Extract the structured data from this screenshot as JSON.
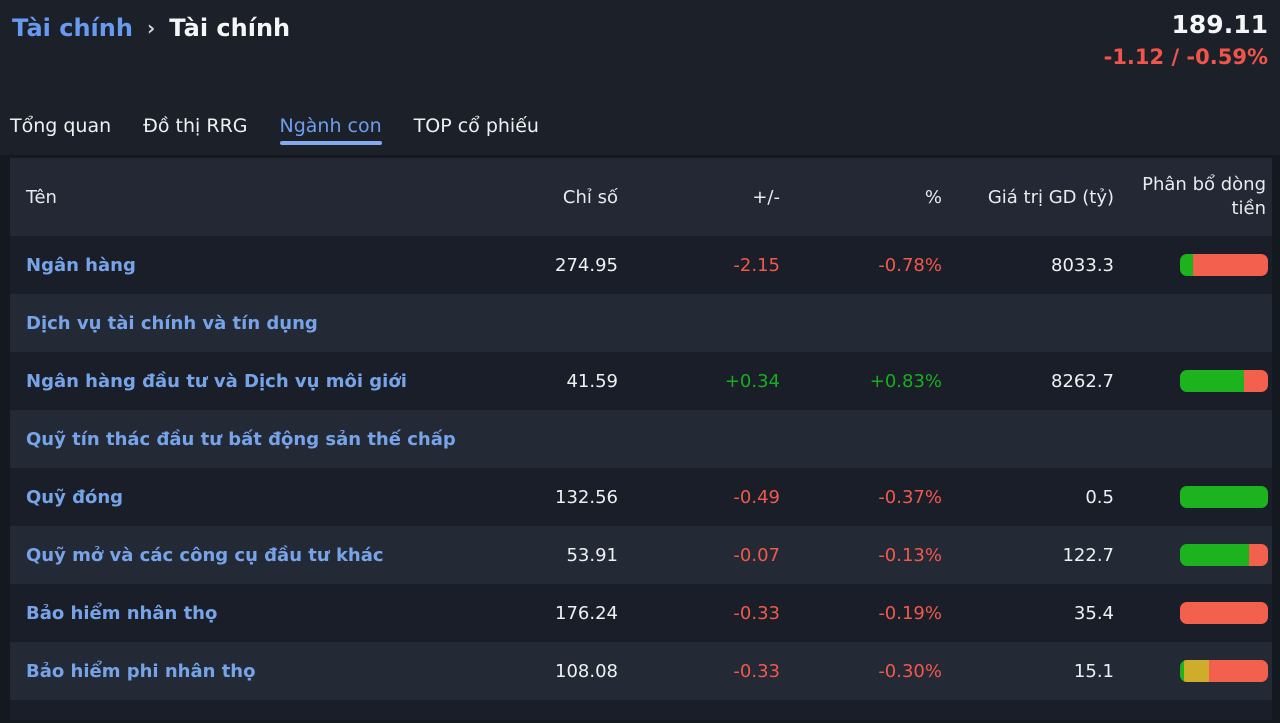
{
  "breadcrumb": {
    "parent": "Tài chính",
    "separator": "›",
    "current": "Tài chính"
  },
  "quote": {
    "value": "189.11",
    "change": "-1.12 / -0.59%"
  },
  "tabs": [
    {
      "label": "Tổng quan",
      "active": false
    },
    {
      "label": "Đồ thị RRG",
      "active": false
    },
    {
      "label": "Ngành con",
      "active": true
    },
    {
      "label": "TOP cổ phiếu",
      "active": false
    }
  ],
  "colors": {
    "accent_blue": "#6f9ded",
    "link_blue": "#77a4e8",
    "down_red": "#f0594b",
    "up_green": "#16ae1e",
    "flow_green": "#1db31f",
    "flow_red": "#f4604e",
    "flow_yellow": "#cfac2a"
  },
  "table": {
    "columns": [
      "Tên",
      "Chỉ số",
      "+/-",
      "%",
      "Giá trị GD (tỷ)",
      "Phân bổ dòng tiền"
    ],
    "rows": [
      {
        "name": "Ngân hàng",
        "index": "274.95",
        "change": "-2.15",
        "pct": "-0.78%",
        "value": "8033.3",
        "dir": "down",
        "flow": [
          {
            "color": "green",
            "pct": 15
          },
          {
            "color": "red",
            "pct": 85
          }
        ]
      },
      {
        "name": "Dịch vụ tài chính và tín dụng",
        "index": "",
        "change": "",
        "pct": "",
        "value": "",
        "dir": "",
        "flow": []
      },
      {
        "name": "Ngân hàng đầu tư và Dịch vụ môi giới",
        "index": "41.59",
        "change": "+0.34",
        "pct": "+0.83%",
        "value": "8262.7",
        "dir": "up",
        "flow": [
          {
            "color": "green",
            "pct": 73
          },
          {
            "color": "red",
            "pct": 27
          }
        ]
      },
      {
        "name": "Quỹ tín thác đầu tư bất động sản thế chấp",
        "index": "",
        "change": "",
        "pct": "",
        "value": "",
        "dir": "",
        "flow": []
      },
      {
        "name": "Quỹ đóng",
        "index": "132.56",
        "change": "-0.49",
        "pct": "-0.37%",
        "value": "0.5",
        "dir": "down",
        "flow": [
          {
            "color": "green",
            "pct": 100
          }
        ]
      },
      {
        "name": "Quỹ mở và các công cụ đầu tư khác",
        "index": "53.91",
        "change": "-0.07",
        "pct": "-0.13%",
        "value": "122.7",
        "dir": "down",
        "flow": [
          {
            "color": "green",
            "pct": 78
          },
          {
            "color": "red",
            "pct": 22
          }
        ]
      },
      {
        "name": "Bảo hiểm nhân thọ",
        "index": "176.24",
        "change": "-0.33",
        "pct": "-0.19%",
        "value": "35.4",
        "dir": "down",
        "flow": [
          {
            "color": "red",
            "pct": 100
          }
        ]
      },
      {
        "name": "Bảo hiểm phi nhân thọ",
        "index": "108.08",
        "change": "-0.33",
        "pct": "-0.30%",
        "value": "15.1",
        "dir": "down",
        "flow": [
          {
            "color": "green",
            "pct": 5
          },
          {
            "color": "yellow",
            "pct": 28
          },
          {
            "color": "red",
            "pct": 67
          }
        ]
      }
    ]
  }
}
